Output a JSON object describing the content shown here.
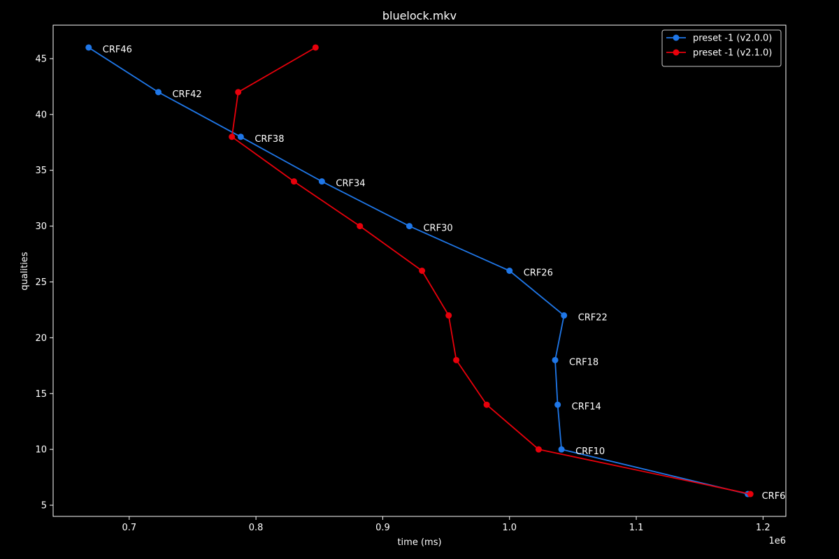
{
  "chart_data": {
    "type": "line",
    "title": "bluelock.mkv",
    "xlabel": "time (ms)",
    "ylabel": "qualities",
    "x_offset_label": "1e6",
    "xlim": [
      640000,
      1218000
    ],
    "ylim": [
      4,
      48
    ],
    "x_ticks": [
      700000,
      800000,
      900000,
      1000000,
      1100000,
      1200000
    ],
    "x_tick_labels": [
      "0.7",
      "0.8",
      "0.9",
      "1.0",
      "1.1",
      "1.2"
    ],
    "y_ticks": [
      5,
      10,
      15,
      20,
      25,
      30,
      35,
      40,
      45
    ],
    "y_tick_labels": [
      "5",
      "10",
      "15",
      "20",
      "25",
      "30",
      "35",
      "40",
      "45"
    ],
    "legend_position": "upper-right",
    "grid": false,
    "background": "#000000",
    "series": [
      {
        "name": "preset -1 (v2.0.0)",
        "color": "#1f77e8",
        "x": [
          668000,
          723000,
          788000,
          852000,
          921000,
          1000000,
          1043000,
          1036000,
          1038000,
          1041000,
          1188000
        ],
        "y": [
          46,
          42,
          38,
          34,
          30,
          26,
          22,
          18,
          14,
          10,
          6
        ]
      },
      {
        "name": "preset -1 (v2.1.0)",
        "color": "#e8000b",
        "x": [
          847000,
          786000,
          781000,
          830000,
          882000,
          931000,
          952000,
          958000,
          982000,
          1023000,
          1190000
        ],
        "y": [
          46,
          42,
          38,
          34,
          30,
          26,
          22,
          18,
          14,
          10,
          6
        ]
      }
    ],
    "annotations": [
      {
        "text": "CRF46",
        "x": 668000,
        "y": 46
      },
      {
        "text": "CRF42",
        "x": 723000,
        "y": 42
      },
      {
        "text": "CRF38",
        "x": 788000,
        "y": 38
      },
      {
        "text": "CRF34",
        "x": 852000,
        "y": 34
      },
      {
        "text": "CRF30",
        "x": 921000,
        "y": 30
      },
      {
        "text": "CRF26",
        "x": 1000000,
        "y": 26
      },
      {
        "text": "CRF22",
        "x": 1043000,
        "y": 22
      },
      {
        "text": "CRF18",
        "x": 1036000,
        "y": 18
      },
      {
        "text": "CRF14",
        "x": 1038000,
        "y": 14
      },
      {
        "text": "CRF10",
        "x": 1041000,
        "y": 10
      },
      {
        "text": "CRF6",
        "x": 1188000,
        "y": 6
      }
    ]
  }
}
